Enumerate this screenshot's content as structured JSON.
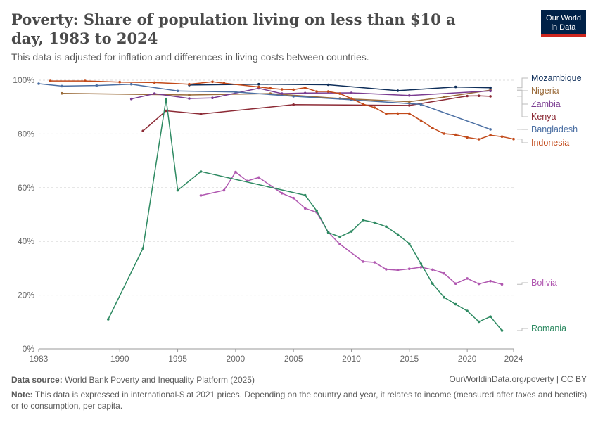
{
  "header": {
    "title": "Poverty: Share of population living on less than $10 a day, 1983 to 2024",
    "subtitle": "This data is adjusted for inflation and differences in living costs between countries.",
    "logo_line1": "Our World",
    "logo_line2": "in Data"
  },
  "footer": {
    "source_label": "Data source:",
    "source_text": "World Bank Poverty and Inequality Platform (2025)",
    "url_text": "OurWorldinData.org/poverty | CC BY",
    "note_label": "Note:",
    "note_text": "This data is expressed in international-$ at 2021 prices. Depending on the country and year, it relates to income (measured after taxes and benefits) or to consumption, per capita."
  },
  "chart_data": {
    "type": "line",
    "title": "Poverty: Share of population living on less than $10 a day, 1983 to 2024",
    "xlim": [
      1983,
      2024
    ],
    "ylim": [
      0,
      100
    ],
    "x_ticks": [
      1983,
      1990,
      1995,
      2000,
      2005,
      2010,
      2015,
      2020,
      2024
    ],
    "y_ticks": [
      0,
      20,
      40,
      60,
      80,
      100
    ],
    "y_tick_labels": [
      "0%",
      "20%",
      "40%",
      "60%",
      "80%",
      "100%"
    ],
    "grid": "horizontal dashed",
    "legend": "right, line-end labels",
    "series": [
      {
        "name": "Mozambique",
        "color": "#0e2e5a",
        "points": [
          [
            1996,
            98.2
          ],
          [
            2002,
            98.5
          ],
          [
            2008,
            98.3
          ],
          [
            2014,
            96.1
          ],
          [
            2019,
            97.5
          ],
          [
            2022,
            97.2
          ]
        ]
      },
      {
        "name": "Nigeria",
        "color": "#9a6b3a",
        "points": [
          [
            1985,
            95.1
          ],
          [
            1996,
            94.5
          ],
          [
            2003,
            95.0
          ],
          [
            2009,
            93.2
          ],
          [
            2015,
            92.0
          ],
          [
            2018,
            93.7
          ],
          [
            2022,
            96.3
          ]
        ]
      },
      {
        "name": "Zambia",
        "color": "#7a3b91",
        "points": [
          [
            1991,
            93.0
          ],
          [
            1993,
            95.0
          ],
          [
            1996,
            93.2
          ],
          [
            1998,
            93.4
          ],
          [
            2002,
            97.0
          ],
          [
            2004,
            95.0
          ],
          [
            2006,
            95.2
          ],
          [
            2010,
            95.3
          ],
          [
            2015,
            94.3
          ],
          [
            2022,
            96.0
          ]
        ]
      },
      {
        "name": "Kenya",
        "color": "#8c2a35",
        "points": [
          [
            1992,
            81.1
          ],
          [
            1994,
            88.6
          ],
          [
            1997,
            87.4
          ],
          [
            2005,
            90.9
          ],
          [
            2015,
            90.6
          ],
          [
            2020,
            94.1
          ],
          [
            2021,
            94.2
          ],
          [
            2022,
            94.0
          ]
        ]
      },
      {
        "name": "Bangladesh",
        "color": "#4b6fa3",
        "points": [
          [
            1983,
            98.7
          ],
          [
            1985,
            97.8
          ],
          [
            1988,
            98.0
          ],
          [
            1991,
            98.5
          ],
          [
            1995,
            96.0
          ],
          [
            2000,
            95.6
          ],
          [
            2005,
            94.0
          ],
          [
            2010,
            92.7
          ],
          [
            2016,
            91.0
          ],
          [
            2022,
            81.7
          ]
        ]
      },
      {
        "name": "Indonesia",
        "color": "#c24a1a",
        "points": [
          [
            1984,
            99.7
          ],
          [
            1987,
            99.7
          ],
          [
            1990,
            99.3
          ],
          [
            1993,
            99.1
          ],
          [
            1996,
            98.5
          ],
          [
            1998,
            99.4
          ],
          [
            1999,
            98.9
          ],
          [
            2002,
            97.5
          ],
          [
            2003,
            97.0
          ],
          [
            2004,
            96.6
          ],
          [
            2005,
            96.5
          ],
          [
            2006,
            97.2
          ],
          [
            2007,
            95.8
          ],
          [
            2008,
            95.8
          ],
          [
            2009,
            95.0
          ],
          [
            2010,
            93.2
          ],
          [
            2011,
            91.1
          ],
          [
            2012,
            89.8
          ],
          [
            2013,
            87.5
          ],
          [
            2014,
            87.6
          ],
          [
            2015,
            87.6
          ],
          [
            2016,
            85.0
          ],
          [
            2017,
            82.2
          ],
          [
            2018,
            80.1
          ],
          [
            2019,
            79.7
          ],
          [
            2020,
            78.7
          ],
          [
            2021,
            78.0
          ],
          [
            2022,
            79.5
          ],
          [
            2023,
            79.0
          ],
          [
            2024,
            78.1
          ]
        ]
      },
      {
        "name": "Bolivia",
        "color": "#b057b0",
        "points": [
          [
            1997,
            57.1
          ],
          [
            1999,
            59.0
          ],
          [
            2000,
            65.8
          ],
          [
            2001,
            62.5
          ],
          [
            2002,
            63.8
          ],
          [
            2004,
            57.9
          ],
          [
            2005,
            56.1
          ],
          [
            2006,
            52.3
          ],
          [
            2007,
            50.8
          ],
          [
            2008,
            43.4
          ],
          [
            2009,
            39.0
          ],
          [
            2011,
            32.5
          ],
          [
            2012,
            32.2
          ],
          [
            2013,
            29.6
          ],
          [
            2014,
            29.3
          ],
          [
            2015,
            29.8
          ],
          [
            2016,
            30.4
          ],
          [
            2017,
            29.5
          ],
          [
            2018,
            28.1
          ],
          [
            2019,
            24.3
          ],
          [
            2020,
            26.2
          ],
          [
            2021,
            24.2
          ],
          [
            2022,
            25.2
          ],
          [
            2023,
            24.0
          ]
        ]
      },
      {
        "name": "Romania",
        "color": "#2e8a62",
        "points": [
          [
            1989,
            11.0
          ],
          [
            1992,
            37.4
          ],
          [
            1994,
            93.0
          ],
          [
            1995,
            59.0
          ],
          [
            1997,
            66.0
          ],
          [
            2006,
            57.2
          ],
          [
            2007,
            51.4
          ],
          [
            2008,
            43.3
          ],
          [
            2009,
            41.7
          ],
          [
            2010,
            43.7
          ],
          [
            2011,
            47.9
          ],
          [
            2012,
            47.0
          ],
          [
            2013,
            45.5
          ],
          [
            2014,
            42.6
          ],
          [
            2015,
            39.2
          ],
          [
            2016,
            31.7
          ],
          [
            2017,
            24.3
          ],
          [
            2018,
            19.2
          ],
          [
            2019,
            16.6
          ],
          [
            2020,
            14.1
          ],
          [
            2021,
            10.1
          ],
          [
            2022,
            12.0
          ],
          [
            2023,
            6.8
          ]
        ]
      }
    ]
  }
}
